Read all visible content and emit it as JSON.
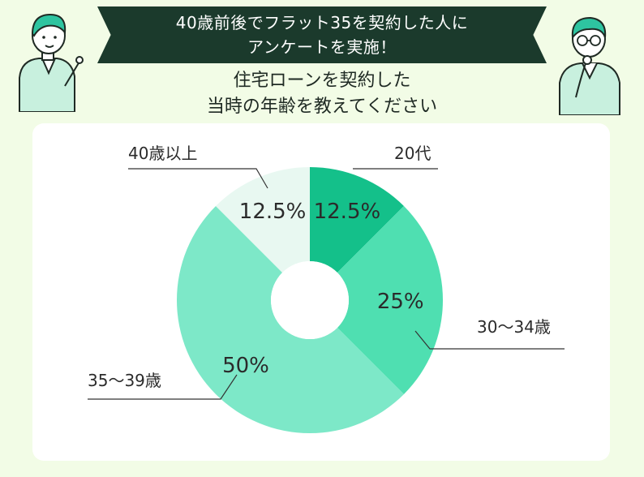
{
  "header": {
    "banner_line1": "40歳前後でフラット35を契約した人に",
    "banner_line2": "アンケートを実施！",
    "question_line1": "住宅ローンを契約した",
    "question_line2": "当時の年齢を教えてください"
  },
  "colors": {
    "background": "#f2fce6",
    "banner": "#1b3a2c",
    "card": "#ffffff",
    "leader_line": "#333333"
  },
  "chart_data": {
    "type": "pie",
    "title": "",
    "donut": true,
    "start_angle_deg": 0,
    "direction": "clockwise",
    "categories": [
      "20代",
      "30〜34歳",
      "35〜39歳",
      "40歳以上"
    ],
    "values": [
      12.5,
      25,
      50,
      12.5
    ],
    "value_labels": [
      "12.5%",
      "25%",
      "50%",
      "12.5%"
    ],
    "colors": [
      "#14c08a",
      "#4fdfb1",
      "#7de8c8",
      "#e8f8f1"
    ],
    "legend": "none (leader-line labels around chart)"
  }
}
